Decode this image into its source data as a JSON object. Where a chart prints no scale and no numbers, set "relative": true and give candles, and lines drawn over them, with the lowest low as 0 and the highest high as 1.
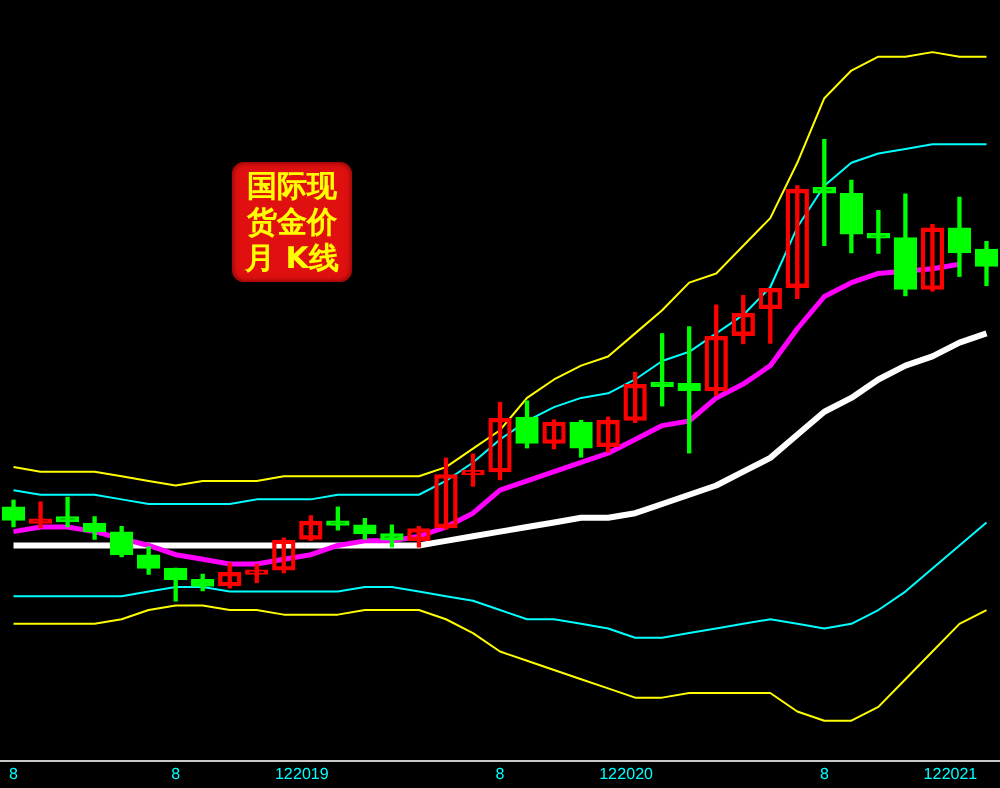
{
  "chart_data": {
    "type": "candlestick",
    "title": "国际现货金价月 K线",
    "relative": true,
    "tick_labels": "x",
    "grid": false,
    "legend": false,
    "categories": [
      "8",
      null,
      null,
      null,
      null,
      null,
      "8",
      null,
      null,
      null,
      "12",
      "2019",
      null,
      null,
      null,
      null,
      null,
      null,
      "8",
      null,
      null,
      null,
      "12",
      "2020",
      null,
      null,
      null,
      null,
      null,
      null,
      "8",
      null,
      null,
      null,
      "12",
      "2021",
      null
    ],
    "ohlc": [
      [
        0.203,
        0.218,
        0.161,
        0.175
      ],
      [
        0.177,
        0.214,
        0.159,
        0.177
      ],
      [
        0.182,
        0.224,
        0.161,
        0.172
      ],
      [
        0.168,
        0.182,
        0.134,
        0.15
      ],
      [
        0.149,
        0.161,
        0.096,
        0.1
      ],
      [
        0.099,
        0.117,
        0.058,
        0.071
      ],
      [
        0.07,
        0.07,
        0,
        0.046
      ],
      [
        0.046,
        0.057,
        0.022,
        0.032
      ],
      [
        0.033,
        0.081,
        0.028,
        0.061
      ],
      [
        0.058,
        0.079,
        0.04,
        0.064
      ],
      [
        0.067,
        0.136,
        0.061,
        0.131
      ],
      [
        0.134,
        0.184,
        0.131,
        0.172
      ],
      [
        0.172,
        0.203,
        0.154,
        0.164
      ],
      [
        0.164,
        0.178,
        0.134,
        0.146
      ],
      [
        0.145,
        0.164,
        0.117,
        0.132
      ],
      [
        0.131,
        0.161,
        0.117,
        0.156
      ],
      [
        0.159,
        0.309,
        0.156,
        0.273
      ],
      [
        0.274,
        0.318,
        0.249,
        0.28
      ],
      [
        0.28,
        0.43,
        0.263,
        0.395
      ],
      [
        0.398,
        0.433,
        0.332,
        0.342
      ],
      [
        0.342,
        0.392,
        0.33,
        0.387
      ],
      [
        0.387,
        0.391,
        0.312,
        0.332
      ],
      [
        0.335,
        0.398,
        0.323,
        0.391
      ],
      [
        0.392,
        0.495,
        0.387,
        0.469
      ],
      [
        0.471,
        0.579,
        0.423,
        0.465
      ],
      [
        0.471,
        0.594,
        0.321,
        0.456
      ],
      [
        0.456,
        0.641,
        0.446,
        0.573
      ],
      [
        0.576,
        0.662,
        0.558,
        0.623
      ],
      [
        0.634,
        0.677,
        0.559,
        0.677
      ],
      [
        0.68,
        0.9,
        0.656,
        0.892
      ],
      [
        0.896,
        1,
        0.771,
        0.885
      ],
      [
        0.883,
        0.912,
        0.755,
        0.796
      ],
      [
        0.796,
        0.846,
        0.754,
        0.787
      ],
      [
        0.787,
        0.882,
        0.662,
        0.676
      ],
      [
        0.676,
        0.816,
        0.672,
        0.808
      ],
      [
        0.808,
        0.875,
        0.704,
        0.755
      ],
      [
        0.762,
        0.779,
        0.684,
        0.726
      ]
    ],
    "colors": [
      "#00ff00",
      "#ff0000",
      "#00ff00",
      "#00ff00",
      "#00ff00",
      "#00ff00",
      "#00ff00",
      "#00ff00",
      "#ff0000",
      "#ff0000",
      "#ff0000",
      "#ff0000",
      "#00ff00",
      "#00ff00",
      "#00ff00",
      "#ff0000",
      "#ff0000",
      "#ff0000",
      "#ff0000",
      "#00ff00",
      "#ff0000",
      "#00ff00",
      "#ff0000",
      "#ff0000",
      "#00ff00",
      "#00ff00",
      "#ff0000",
      "#ff0000",
      "#ff0000",
      "#ff0000",
      "#00ff00",
      "#00ff00",
      "#00ff00",
      "#00ff00",
      "#ff0000",
      "#00ff00",
      "#00ff00"
    ],
    "series": [
      {
        "type": "line",
        "color": "#ffff00",
        "values": [
          0.29,
          0.28,
          0.28,
          0.28,
          0.27,
          0.26,
          0.25,
          0.26,
          0.26,
          0.26,
          0.27,
          0.27,
          0.27,
          0.27,
          0.27,
          0.27,
          0.29,
          0.33,
          0.37,
          0.44,
          0.48,
          0.51,
          0.53,
          0.58,
          0.63,
          0.69,
          0.71,
          0.77,
          0.83,
          0.95,
          1.09,
          1.15,
          1.18,
          1.18,
          1.19,
          1.18,
          1.18
        ]
      },
      {
        "type": "line",
        "color": "#00ffff",
        "values": [
          0.24,
          0.23,
          0.23,
          0.23,
          0.22,
          0.21,
          0.21,
          0.21,
          0.21,
          0.22,
          0.22,
          0.22,
          0.23,
          0.23,
          0.23,
          0.23,
          0.26,
          0.3,
          0.35,
          0.39,
          0.42,
          0.44,
          0.45,
          0.48,
          0.52,
          0.54,
          0.58,
          0.62,
          0.68,
          0.81,
          0.9,
          0.95,
          0.97,
          0.98,
          0.99,
          0.99,
          0.99
        ]
      },
      {
        "type": "line",
        "color": "#ff00ff",
        "values": [
          0.15,
          0.16,
          0.16,
          0.15,
          null,
          0.12,
          0.1,
          0.09,
          0.08,
          0.08,
          0.09,
          0.1,
          0.12,
          0.13,
          0.13,
          0.14,
          0.16,
          0.19,
          0.24,
          0.26,
          0.28,
          0.3,
          0.32,
          0.35,
          0.38,
          0.39,
          0.44,
          0.47,
          0.51,
          0.59,
          0.66,
          0.69,
          0.71,
          null,
          0.72,
          0.73,
          null
        ]
      },
      {
        "type": "line",
        "color": "#ffffff",
        "values": [
          0.12,
          0.12,
          0.12,
          0.12,
          null,
          0.12,
          0.12,
          0.12,
          0.12,
          0.12,
          0.12,
          0.12,
          0.12,
          0.12,
          0.12,
          0.12,
          0.13,
          0.14,
          0.15,
          0.16,
          0.17,
          0.18,
          0.18,
          0.19,
          0.21,
          0.23,
          0.25,
          0.28,
          0.31,
          0.36,
          0.41,
          0.44,
          0.48,
          0.51,
          0.53,
          0.56,
          0.58
        ]
      },
      {
        "type": "line",
        "color": "#00fffe",
        "values": [
          0.01,
          0.01,
          0.01,
          0.01,
          0.01,
          0.02,
          0.03,
          0.03,
          0.02,
          0.02,
          0.02,
          0.02,
          0.02,
          0.03,
          0.03,
          0.02,
          0.01,
          0.0,
          -0.02,
          -0.04,
          -0.04,
          -0.05,
          -0.06,
          -0.08,
          -0.08,
          -0.07,
          -0.06,
          -0.05,
          -0.04,
          -0.05,
          -0.06,
          -0.05,
          -0.02,
          0.02,
          0.07,
          0.12,
          0.17
        ]
      },
      {
        "type": "line",
        "color": "#fefe00",
        "values": [
          -0.05,
          -0.05,
          -0.05,
          -0.05,
          -0.04,
          -0.02,
          -0.01,
          -0.01,
          -0.02,
          -0.02,
          -0.03,
          -0.03,
          -0.03,
          -0.02,
          -0.02,
          -0.02,
          -0.04,
          -0.07,
          -0.11,
          -0.13,
          -0.15,
          -0.17,
          -0.19,
          -0.21,
          -0.21,
          -0.2,
          -0.2,
          -0.2,
          -0.2,
          -0.24,
          -0.26,
          -0.26,
          -0.23,
          -0.17,
          -0.11,
          -0.05,
          -0.02
        ]
      }
    ]
  }
}
